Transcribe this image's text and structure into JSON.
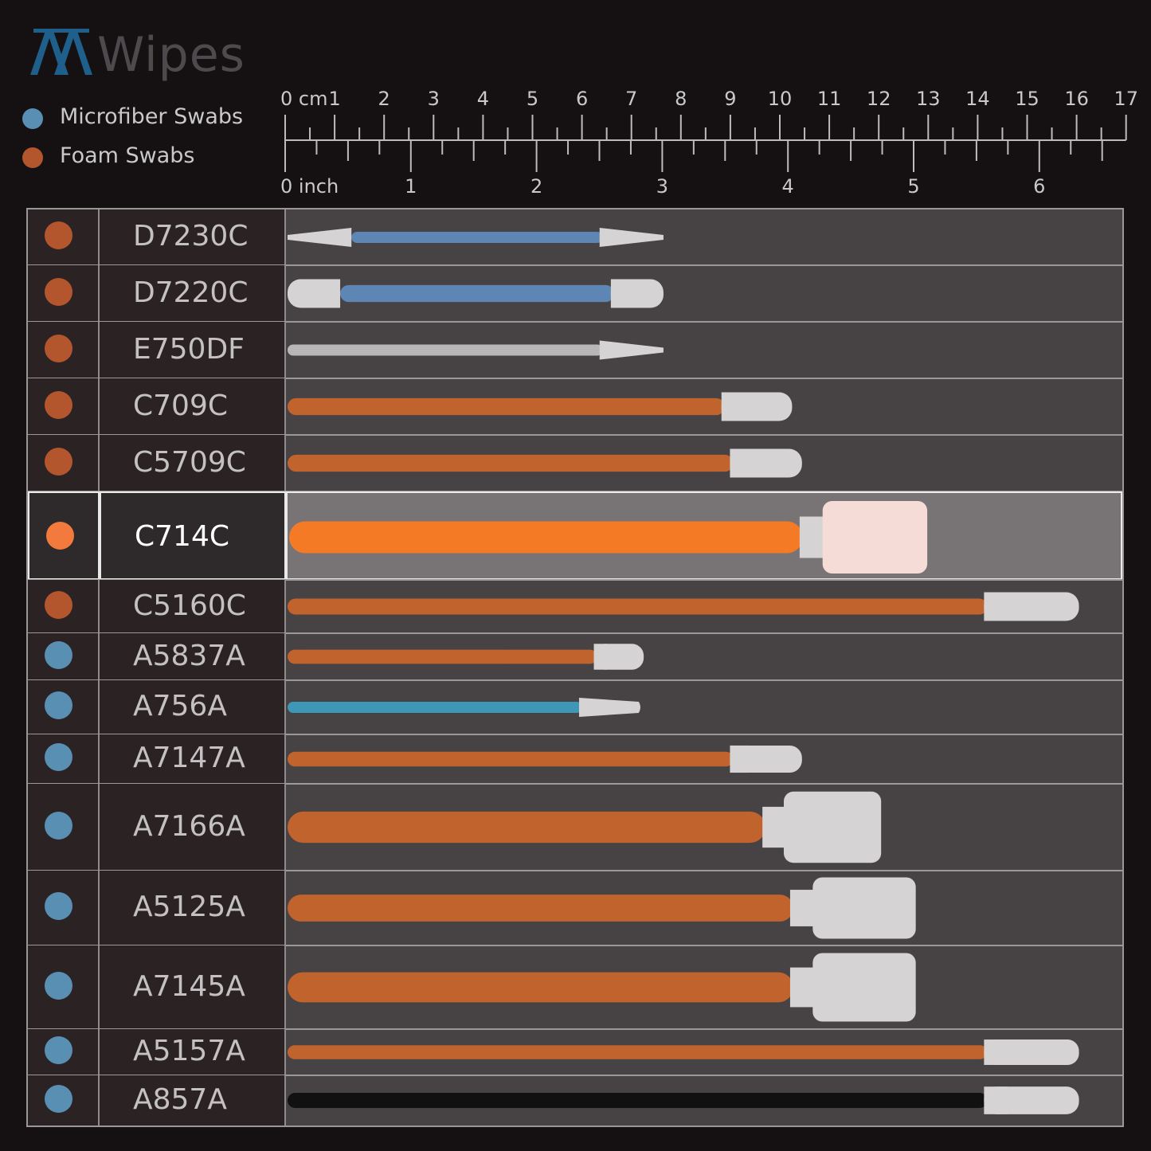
{
  "brand": {
    "mark": "AA",
    "name": "Wipes",
    "mark_color": "#1f5f8c"
  },
  "legend": [
    {
      "label": "Microfiber Swabs",
      "color": "#5a8fb4"
    },
    {
      "label": "Foam Swabs",
      "color": "#b4562d"
    }
  ],
  "ruler": {
    "cm_labels": [
      "0 cm",
      "1",
      "2",
      "3",
      "4",
      "5",
      "6",
      "7",
      "8",
      "9",
      "10",
      "11",
      "12",
      "13",
      "14",
      "15",
      "16",
      "17"
    ],
    "inch_labels": [
      "0 inch",
      "1",
      "2",
      "3",
      "4",
      "5",
      "6"
    ]
  },
  "rows": [
    {
      "code": "D7230C",
      "type": "foam",
      "head": "pointed",
      "double": true,
      "handle": "#5e86b4",
      "length_cm": 7.6
    },
    {
      "code": "D7220C",
      "type": "foam",
      "head": "round",
      "double": true,
      "handle": "#5e86b4",
      "length_cm": 7.6
    },
    {
      "code": "E750DF",
      "type": "foam",
      "head": "pointed",
      "double": false,
      "handle": "#b9b6b7",
      "length_cm": 7.6
    },
    {
      "code": "C709C",
      "type": "foam",
      "head": "round",
      "double": false,
      "handle": "#c0632c",
      "length_cm": 10.2
    },
    {
      "code": "C5709C",
      "type": "foam",
      "head": "round",
      "double": false,
      "handle": "#c0632c",
      "length_cm": 10.4
    },
    {
      "code": "C714C",
      "type": "foam",
      "head": "rect",
      "double": false,
      "handle": "#f57a26",
      "length_cm": 12.9,
      "highlight": true
    },
    {
      "code": "C5160C",
      "type": "foam",
      "head": "round",
      "double": false,
      "handle": "#c0632c",
      "length_cm": 16.0
    },
    {
      "code": "A5837A",
      "type": "microfiber",
      "head": "round",
      "double": false,
      "handle": "#c0632c",
      "length_cm": 7.2
    },
    {
      "code": "A756A",
      "type": "microfiber",
      "head": "pointed-blunt",
      "double": false,
      "handle": "#3f97b8",
      "length_cm": 7.1
    },
    {
      "code": "A7147A",
      "type": "microfiber",
      "head": "round",
      "double": false,
      "handle": "#c0632c",
      "length_cm": 10.4
    },
    {
      "code": "A7166A",
      "type": "microfiber",
      "head": "rect",
      "double": false,
      "handle": "#c0632c",
      "length_cm": 12.0
    },
    {
      "code": "A5125A",
      "type": "microfiber",
      "head": "rect",
      "double": false,
      "handle": "#c0632c",
      "length_cm": 12.7
    },
    {
      "code": "A7145A",
      "type": "microfiber",
      "head": "rect",
      "double": false,
      "handle": "#c0632c",
      "length_cm": 12.7
    },
    {
      "code": "A5157A",
      "type": "microfiber",
      "head": "round",
      "double": false,
      "handle": "#c0632c",
      "length_cm": 16.0
    },
    {
      "code": "A857A",
      "type": "microfiber",
      "head": "round",
      "double": false,
      "handle": "#111111",
      "length_cm": 16.0
    }
  ]
}
